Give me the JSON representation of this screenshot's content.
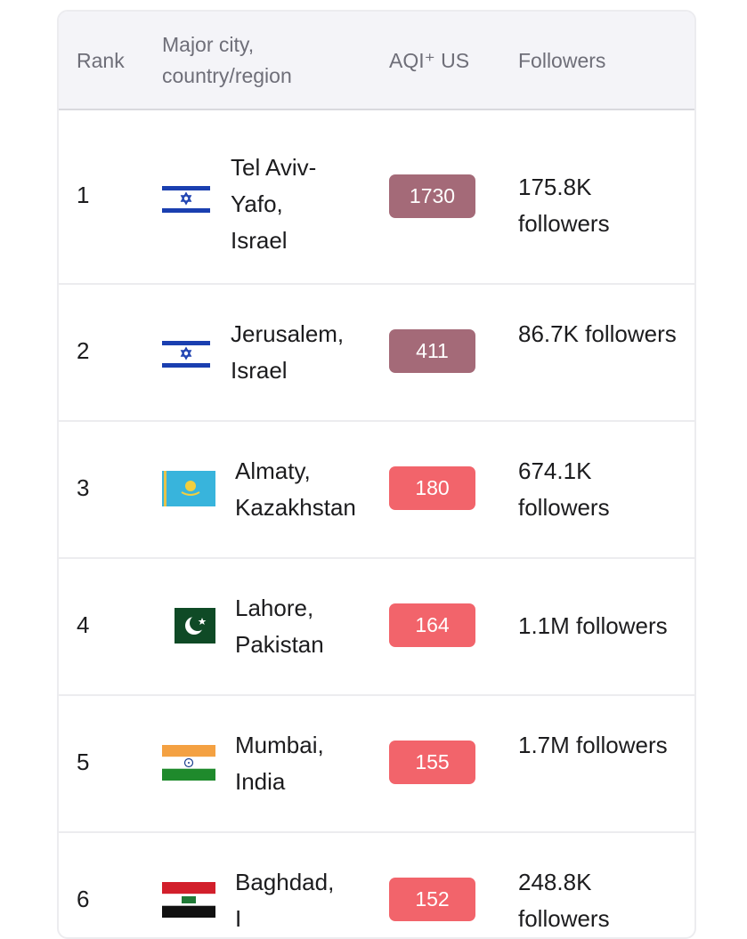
{
  "table": {
    "headers": {
      "rank": "Rank",
      "city": "Major city,\ncountry/region",
      "aqi": "AQI⁺ US",
      "followers": "Followers"
    },
    "rows": [
      {
        "rank": "1",
        "city": "Tel Aviv-\nYafo,\nIsrael",
        "flag": "israel-flag-icon",
        "aqi": "1730",
        "aqi_color": "#a46a78",
        "followers": "175.8K followers"
      },
      {
        "rank": "2",
        "city": "Jerusalem,\nIsrael",
        "flag": "israel-flag-icon",
        "aqi": "411",
        "aqi_color": "#a46a78",
        "followers": "86.7K followers"
      },
      {
        "rank": "3",
        "city": "Almaty,\nKazakhstan",
        "flag": "kazakhstan-flag-icon",
        "aqi": "180",
        "aqi_color": "#f2646b",
        "followers": "674.1K followers"
      },
      {
        "rank": "4",
        "city": "Lahore,\nPakistan",
        "flag": "pakistan-flag-icon",
        "aqi": "164",
        "aqi_color": "#f2646b",
        "followers": "1.1M followers"
      },
      {
        "rank": "5",
        "city": "Mumbai,\nIndia",
        "flag": "india-flag-icon",
        "aqi": "155",
        "aqi_color": "#f2646b",
        "followers": "1.7M followers"
      },
      {
        "rank": "6",
        "city": "Baghdad,\nI",
        "flag": "iraq-flag-icon",
        "aqi": "152",
        "aqi_color": "#f2646b",
        "followers": "248.8K followers"
      }
    ]
  }
}
